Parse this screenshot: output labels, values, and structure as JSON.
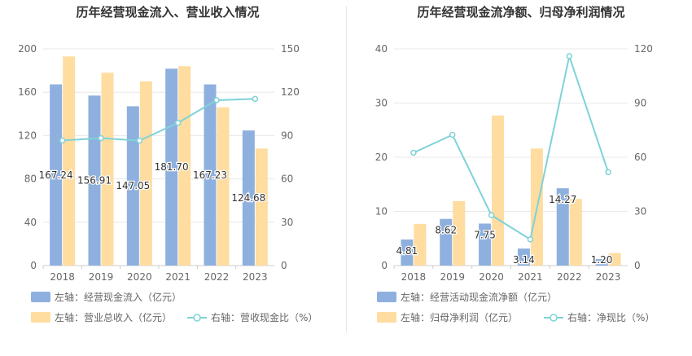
{
  "colors": {
    "bar_primary": "#8eb0de",
    "bar_secondary": "#ffdca0",
    "line": "#7fd2d8",
    "axis_text": "#666666",
    "grid": "#e8e8e8"
  },
  "chart_data": [
    {
      "type": "bar",
      "title": "历年经营现金流入、营业收入情况",
      "categories": [
        "2018",
        "2019",
        "2020",
        "2021",
        "2022",
        "2023"
      ],
      "left_axis": {
        "ylim": [
          0,
          200
        ],
        "ticks": [
          "0",
          "40",
          "80",
          "120",
          "160",
          "200"
        ]
      },
      "right_axis": {
        "ylim": [
          0,
          150
        ],
        "ticks": [
          "0",
          "30",
          "60",
          "90",
          "120",
          "150"
        ]
      },
      "series": [
        {
          "name": "左轴：经营现金流入（亿元）",
          "axis": "left",
          "kind": "bar",
          "values": [
            167.24,
            156.91,
            147.05,
            181.7,
            167.23,
            124.68
          ],
          "labels": [
            "167.24",
            "156.91",
            "147.05",
            "181.70",
            "167.23",
            "124.68"
          ]
        },
        {
          "name": "左轴：营业总收入（亿元）",
          "axis": "left",
          "kind": "bar",
          "values": [
            193,
            178,
            170,
            184,
            146,
            108
          ]
        },
        {
          "name": "右轴：营收现金比（%）",
          "axis": "right",
          "kind": "line",
          "values": [
            86.6,
            88.2,
            86.5,
            98.8,
            114.5,
            115.4
          ]
        }
      ]
    },
    {
      "type": "bar",
      "title": "历年经营现金流净额、归母净利润情况",
      "categories": [
        "2018",
        "2019",
        "2020",
        "2021",
        "2022",
        "2023"
      ],
      "left_axis": {
        "ylim": [
          0,
          40
        ],
        "ticks": [
          "0",
          "10",
          "20",
          "30",
          "40"
        ]
      },
      "right_axis": {
        "ylim": [
          0,
          120
        ],
        "ticks": [
          "0",
          "30",
          "60",
          "90",
          "120"
        ]
      },
      "series": [
        {
          "name": "左轴：经营活动现金流净额（亿元）",
          "axis": "left",
          "kind": "bar",
          "values": [
            4.81,
            8.62,
            7.75,
            3.14,
            14.27,
            1.2
          ],
          "labels": [
            "4.81",
            "8.62",
            "7.75",
            "3.14",
            "14.27",
            "1.20"
          ]
        },
        {
          "name": "左轴：归母净利润（亿元）",
          "axis": "left",
          "kind": "bar",
          "values": [
            7.7,
            11.9,
            27.7,
            21.6,
            12.3,
            2.3
          ]
        },
        {
          "name": "右轴：净现比（%）",
          "axis": "right",
          "kind": "line",
          "values": [
            62.5,
            72.4,
            27.9,
            14.5,
            116.0,
            51.7
          ]
        }
      ]
    }
  ]
}
